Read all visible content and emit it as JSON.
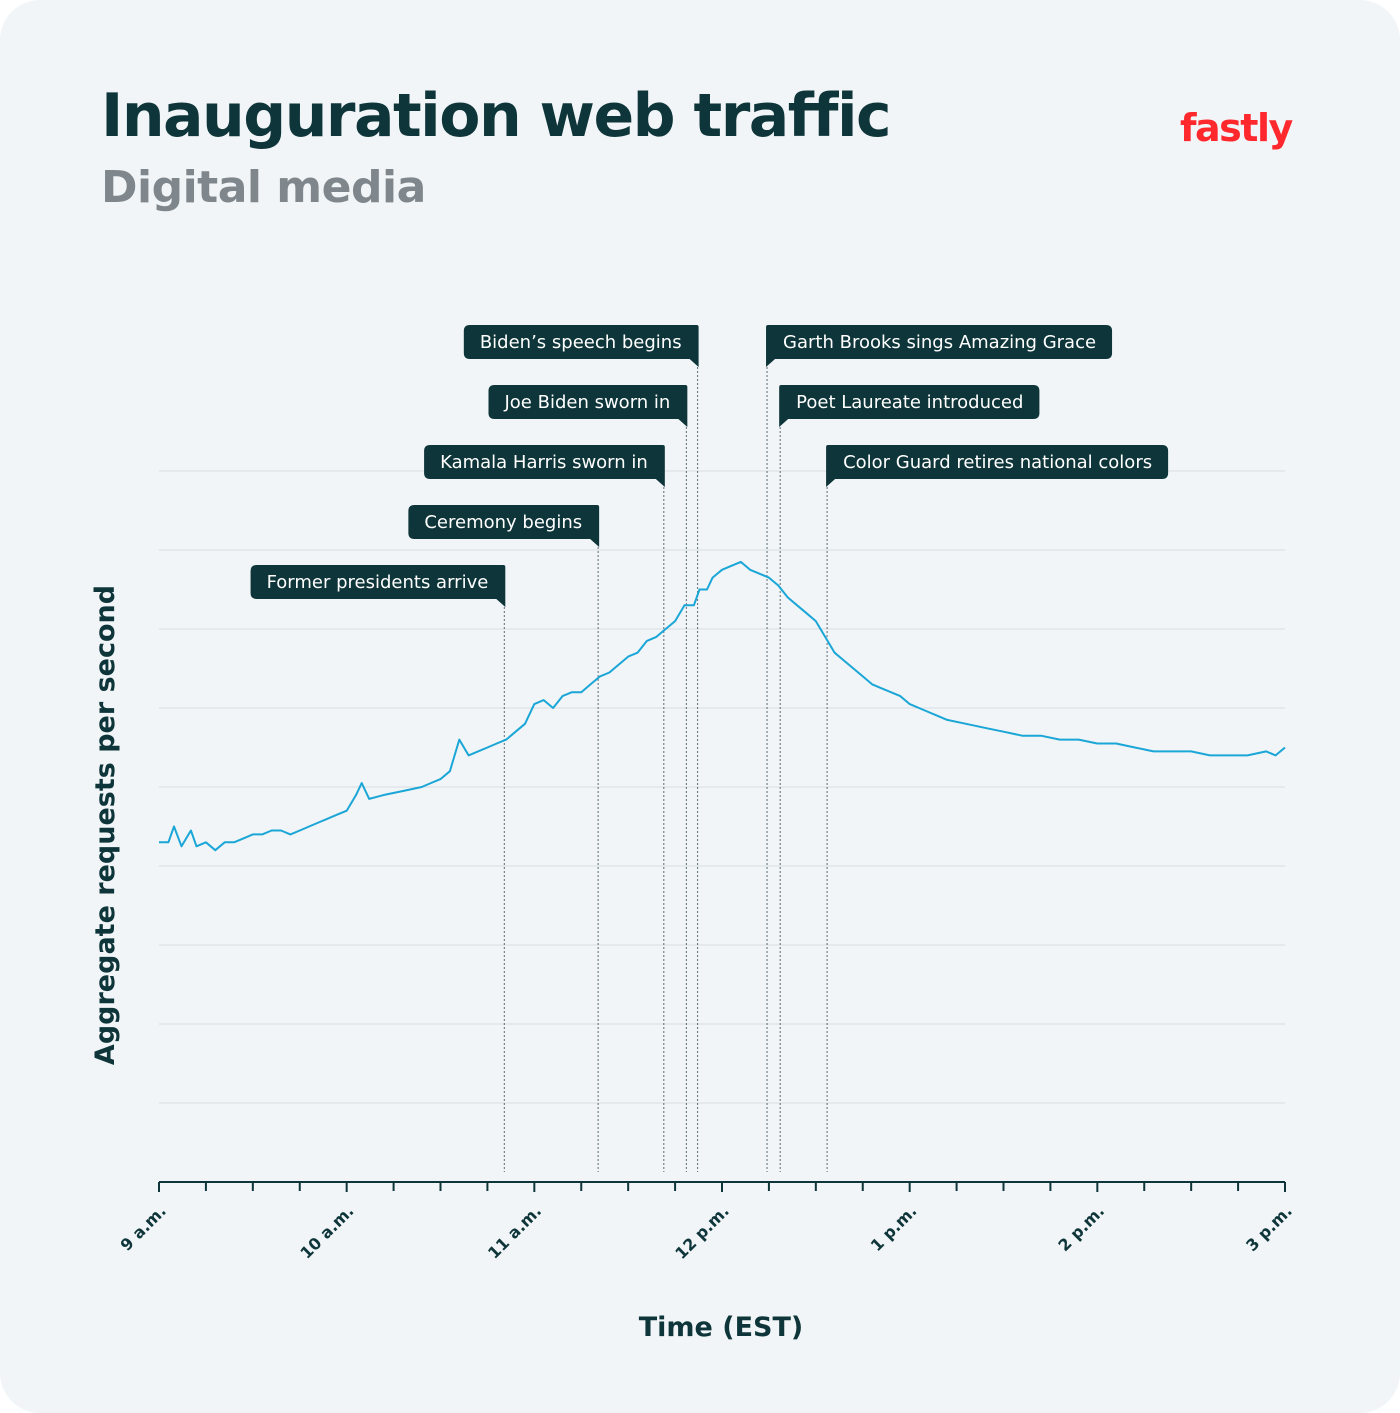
{
  "header": {
    "title": "Inauguration web traffic",
    "subtitle": "Digital media",
    "logo": "fastly"
  },
  "colors": {
    "background": "#f1f5f8",
    "title": "#0e3539",
    "subtitle": "#7f878c",
    "brand": "#ff282d",
    "line": "#1aa6d6",
    "annotation": "#0e3539",
    "grid": "#d6dde2"
  },
  "chart_data": {
    "type": "line",
    "title": "Inauguration web traffic",
    "subtitle": "Digital media",
    "xlabel": "Time (EST)",
    "ylabel": "Aggregate requests per second",
    "x_unit": "hours after 9 a.m.",
    "xlim": [
      0,
      6
    ],
    "ylim": [
      0,
      9
    ],
    "y_ticks_labeled": false,
    "grid": "horizontal",
    "x_ticks": [
      {
        "x": 0,
        "label": "9 a.m."
      },
      {
        "x": 1,
        "label": "10 a.m."
      },
      {
        "x": 2,
        "label": "11 a.m."
      },
      {
        "x": 3,
        "label": "12 p.m."
      },
      {
        "x": 4,
        "label": "1 p.m."
      },
      {
        "x": 5,
        "label": "2 p.m."
      },
      {
        "x": 6,
        "label": "3 p.m."
      }
    ],
    "series": [
      {
        "name": "",
        "points": [
          [
            0.0,
            4.3
          ],
          [
            0.05,
            4.3
          ],
          [
            0.08,
            4.5
          ],
          [
            0.12,
            4.25
          ],
          [
            0.17,
            4.45
          ],
          [
            0.2,
            4.25
          ],
          [
            0.25,
            4.3
          ],
          [
            0.3,
            4.2
          ],
          [
            0.35,
            4.3
          ],
          [
            0.4,
            4.3
          ],
          [
            0.45,
            4.35
          ],
          [
            0.5,
            4.4
          ],
          [
            0.55,
            4.4
          ],
          [
            0.6,
            4.45
          ],
          [
            0.65,
            4.45
          ],
          [
            0.7,
            4.4
          ],
          [
            0.75,
            4.45
          ],
          [
            0.8,
            4.5
          ],
          [
            0.85,
            4.55
          ],
          [
            0.9,
            4.6
          ],
          [
            0.95,
            4.65
          ],
          [
            1.0,
            4.7
          ],
          [
            1.05,
            4.9
          ],
          [
            1.08,
            5.05
          ],
          [
            1.12,
            4.85
          ],
          [
            1.2,
            4.9
          ],
          [
            1.3,
            4.95
          ],
          [
            1.4,
            5.0
          ],
          [
            1.45,
            5.05
          ],
          [
            1.5,
            5.1
          ],
          [
            1.55,
            5.2
          ],
          [
            1.6,
            5.6
          ],
          [
            1.65,
            5.4
          ],
          [
            1.7,
            5.45
          ],
          [
            1.75,
            5.5
          ],
          [
            1.8,
            5.55
          ],
          [
            1.85,
            5.6
          ],
          [
            1.9,
            5.7
          ],
          [
            1.95,
            5.8
          ],
          [
            2.0,
            6.05
          ],
          [
            2.05,
            6.1
          ],
          [
            2.1,
            6.0
          ],
          [
            2.15,
            6.15
          ],
          [
            2.2,
            6.2
          ],
          [
            2.25,
            6.2
          ],
          [
            2.3,
            6.3
          ],
          [
            2.35,
            6.4
          ],
          [
            2.4,
            6.45
          ],
          [
            2.5,
            6.65
          ],
          [
            2.55,
            6.7
          ],
          [
            2.6,
            6.85
          ],
          [
            2.65,
            6.9
          ],
          [
            2.7,
            7.0
          ],
          [
            2.75,
            7.1
          ],
          [
            2.8,
            7.3
          ],
          [
            2.85,
            7.3
          ],
          [
            2.88,
            7.5
          ],
          [
            2.92,
            7.5
          ],
          [
            2.95,
            7.65
          ],
          [
            3.0,
            7.75
          ],
          [
            3.05,
            7.8
          ],
          [
            3.1,
            7.85
          ],
          [
            3.15,
            7.75
          ],
          [
            3.2,
            7.7
          ],
          [
            3.25,
            7.65
          ],
          [
            3.3,
            7.55
          ],
          [
            3.35,
            7.4
          ],
          [
            3.4,
            7.3
          ],
          [
            3.45,
            7.2
          ],
          [
            3.5,
            7.1
          ],
          [
            3.55,
            6.9
          ],
          [
            3.6,
            6.7
          ],
          [
            3.65,
            6.6
          ],
          [
            3.7,
            6.5
          ],
          [
            3.75,
            6.4
          ],
          [
            3.8,
            6.3
          ],
          [
            3.85,
            6.25
          ],
          [
            3.9,
            6.2
          ],
          [
            3.95,
            6.15
          ],
          [
            4.0,
            6.05
          ],
          [
            4.05,
            6.0
          ],
          [
            4.1,
            5.95
          ],
          [
            4.15,
            5.9
          ],
          [
            4.2,
            5.85
          ],
          [
            4.3,
            5.8
          ],
          [
            4.4,
            5.75
          ],
          [
            4.5,
            5.7
          ],
          [
            4.6,
            5.65
          ],
          [
            4.7,
            5.65
          ],
          [
            4.8,
            5.6
          ],
          [
            4.9,
            5.6
          ],
          [
            5.0,
            5.55
          ],
          [
            5.1,
            5.55
          ],
          [
            5.2,
            5.5
          ],
          [
            5.3,
            5.45
          ],
          [
            5.4,
            5.45
          ],
          [
            5.5,
            5.45
          ],
          [
            5.6,
            5.4
          ],
          [
            5.7,
            5.4
          ],
          [
            5.8,
            5.4
          ],
          [
            5.9,
            5.45
          ],
          [
            5.95,
            5.4
          ],
          [
            6.0,
            5.5
          ]
        ]
      }
    ],
    "annotations": [
      {
        "label": "Former presidents arrive",
        "x": 1.84,
        "row": 5,
        "side": "left"
      },
      {
        "label": "Ceremony begins",
        "x": 2.34,
        "row": 4,
        "side": "left"
      },
      {
        "label": "Kamala Harris sworn in",
        "x": 2.69,
        "row": 3,
        "side": "left"
      },
      {
        "label": "Joe Biden sworn in",
        "x": 2.81,
        "row": 2,
        "side": "left"
      },
      {
        "label": "Biden’s speech begins",
        "x": 2.87,
        "row": 1,
        "side": "left"
      },
      {
        "label": "Garth Brooks sings Amazing Grace",
        "x": 3.24,
        "row": 1,
        "side": "right"
      },
      {
        "label": "Poet Laureate introduced",
        "x": 3.31,
        "row": 2,
        "side": "right"
      },
      {
        "label": "Color Guard retires national colors",
        "x": 3.56,
        "row": 3,
        "side": "right"
      }
    ]
  }
}
